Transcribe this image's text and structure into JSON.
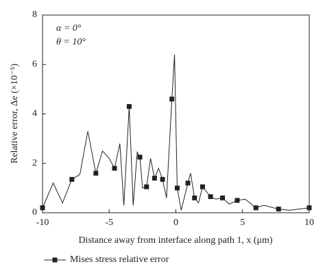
{
  "chart_data": {
    "type": "line",
    "xlabel": "Distance away from interface along path 1, x (μm)",
    "ylabel": "Relative error, Δe (×10⁻⁵)",
    "annotations": [
      "α = 0°",
      "θ = 10°"
    ],
    "x": [
      -10,
      -9.2,
      -8.5,
      -7.8,
      -7.2,
      -6.6,
      -6.0,
      -5.5,
      -5.0,
      -4.6,
      -4.2,
      -3.9,
      -3.5,
      -3.2,
      -2.9,
      -2.7,
      -2.5,
      -2.2,
      -1.9,
      -1.6,
      -1.3,
      -1.0,
      -0.7,
      -0.3,
      -0.1,
      0.1,
      0.4,
      0.9,
      1.1,
      1.4,
      1.7,
      2.0,
      2.6,
      3.0,
      3.5,
      4.0,
      4.6,
      5.2,
      6.0,
      6.6,
      7.7,
      8.5,
      10
    ],
    "series": [
      {
        "name": "Mises stress relative error",
        "color": "#222222",
        "values": [
          0.2,
          1.2,
          0.4,
          1.35,
          1.55,
          3.3,
          1.6,
          2.5,
          2.2,
          1.8,
          2.8,
          0.3,
          4.3,
          0.3,
          2.45,
          2.25,
          1.0,
          1.05,
          2.2,
          1.4,
          1.8,
          1.35,
          0.6,
          4.6,
          6.4,
          1.0,
          0.1,
          1.2,
          1.6,
          0.6,
          0.4,
          1.05,
          0.65,
          0.55,
          0.6,
          0.35,
          0.5,
          0.55,
          0.2,
          0.3,
          0.15,
          0.1,
          0.2
        ],
        "marker_indices": [
          0,
          3,
          6,
          9,
          12,
          15,
          17,
          19,
          21,
          23,
          25,
          27,
          29,
          31,
          32,
          34,
          36,
          38,
          40,
          42
        ]
      }
    ],
    "xlim": [
      -10,
      10
    ],
    "xticks": [
      -10,
      -5,
      0,
      5,
      10
    ],
    "ylim": [
      0,
      8
    ],
    "yticks": [
      0,
      2,
      4,
      6,
      8
    ]
  }
}
